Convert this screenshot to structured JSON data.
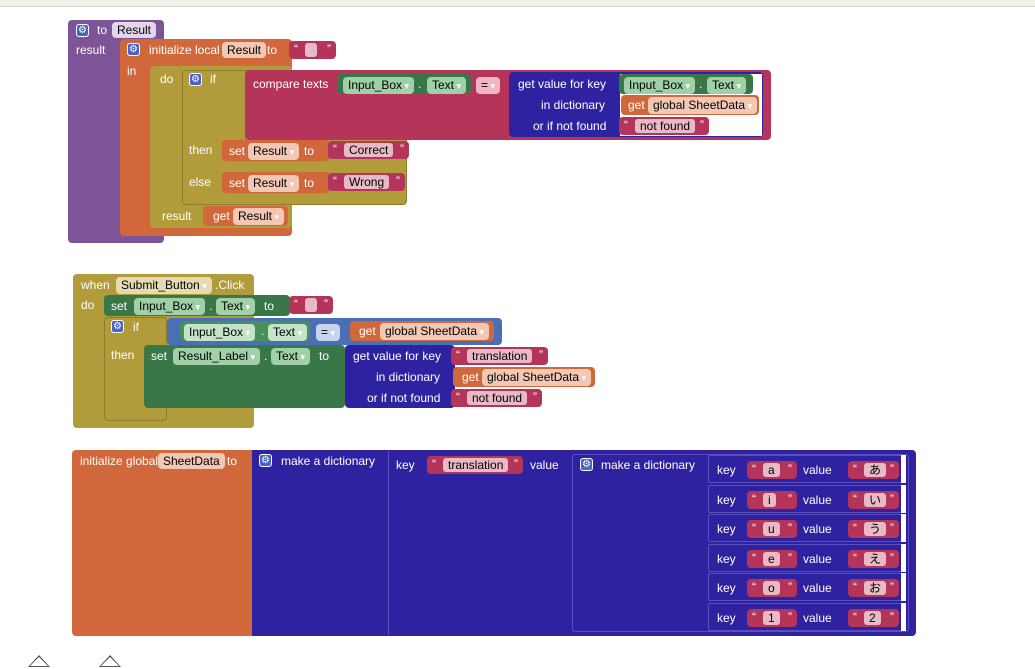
{
  "proc": {
    "to": "to",
    "name": "Result",
    "result_label": "result",
    "init_local": "initialize local",
    "local_var": "Result",
    "to_label": "to",
    "in_label": "in",
    "do_label": "do",
    "if_label": "if",
    "compare": "compare texts",
    "input_comp": "Input_Box",
    "dot": ".",
    "text_prop": "Text",
    "eq": "=",
    "getvalue": "get value for key",
    "indict": "in dictionary",
    "ifnotfound": "or if not found",
    "get": "get",
    "global_sheet": "global SheetData",
    "notfound": "not found",
    "then": "then",
    "else": "else",
    "set": "set",
    "correct": "Correct",
    "wrong": "Wrong",
    "result_ret": "result",
    "get_result": "Result"
  },
  "event": {
    "when": "when",
    "component": "Submit_Button",
    "event": ".Click",
    "do": "do",
    "set": "set",
    "input_comp": "Input_Box",
    "dot": ".",
    "text_prop": "Text",
    "to": "to",
    "if": "if",
    "eq": "=",
    "get": "get",
    "global_sheet": "global SheetData",
    "then": "then",
    "result_comp": "Result_Label",
    "getvalue": "get value for key",
    "translation": "translation",
    "indict": "in dictionary",
    "ifnotfound": "or if not found",
    "notfound": "not found"
  },
  "global": {
    "init": "initialize global",
    "name": "SheetData",
    "to": "to",
    "make_dict": "make a dictionary",
    "key": "key",
    "outer_key": "translation",
    "value": "value",
    "pairs": [
      {
        "key": "a",
        "value": "あ"
      },
      {
        "key": "i",
        "value": "い"
      },
      {
        "key": "u",
        "value": "う"
      },
      {
        "key": "e",
        "value": "え"
      },
      {
        "key": "o",
        "value": "お"
      },
      {
        "key": "1",
        "value": "2"
      }
    ]
  },
  "workspace": {
    "bg": "#ffffff",
    "colors": {
      "procedure": "#7c5497",
      "variable": "#d0683c",
      "control": "#b29b3a",
      "text": "#b5345a",
      "dictionary": "#2e22a0",
      "component": "#3a7748",
      "component_light": "#48905a",
      "logic": "#4b6fb4"
    },
    "gear_icon": "gear-icon"
  }
}
